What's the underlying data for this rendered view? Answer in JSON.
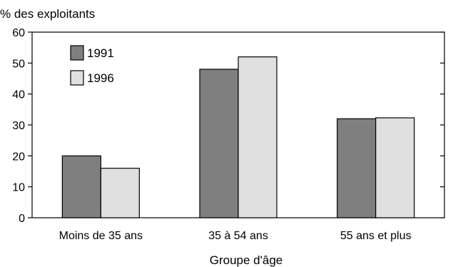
{
  "chart_data": {
    "type": "bar",
    "title": "",
    "ylabel": "% des exploitants",
    "xlabel": "Groupe d'âge",
    "categories": [
      "Moins de 35 ans",
      "35 à 54 ans",
      "55 ans et plus"
    ],
    "series": [
      {
        "name": "1991",
        "values": [
          20,
          48,
          32
        ],
        "color": "#7f7f7f"
      },
      {
        "name": "1996",
        "values": [
          16,
          52,
          32.3
        ],
        "color": "#e0e0e0"
      }
    ],
    "ylim": [
      0,
      60
    ],
    "yticks": [
      "0",
      "10",
      "20",
      "30",
      "40",
      "50",
      "60"
    ],
    "grid": false,
    "legend": "top-left"
  }
}
